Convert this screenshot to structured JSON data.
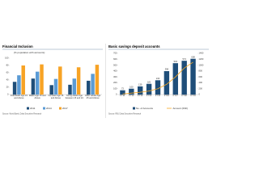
{
  "chart_data": [
    {
      "type": "bar",
      "title": "Financial Inclusion",
      "subtitle": "(% population with accounts)",
      "categories": [
        "Individuals Age 15 and Above",
        "Males Age 15 and Above",
        "Females Age 15 and Above",
        "Young Adults Age between 15 and 24",
        "Older Adults Age 25 and Above"
      ],
      "series": [
        {
          "name": "2011",
          "color": "#1f4e79",
          "values": [
            35,
            44,
            26,
            27,
            38
          ]
        },
        {
          "name": "2014",
          "color": "#5b9bd5",
          "values": [
            53,
            63,
            43,
            44,
            57
          ]
        },
        {
          "name": "2017",
          "color": "#f7a325",
          "values": [
            80,
            83,
            77,
            75,
            82
          ]
        }
      ],
      "ylim": [
        0,
        100
      ],
      "yticks": [
        0,
        20,
        40,
        60,
        80,
        100
      ],
      "source": "Source: World Bank, Dolat Securities Research"
    },
    {
      "type": "bar-line",
      "title": "Basic savings deposit accounts",
      "categories": [
        "FY11",
        "FY12",
        "FY13",
        "FY14",
        "FY15",
        "FY16",
        "FY17",
        "FY18",
        "FY19"
      ],
      "series": [
        {
          "name": "No. of Accounts",
          "color": "#1f4e79",
          "values": [
            73,
            100,
            139,
            182,
            243,
            398,
            533,
            574,
            608
          ]
        },
        {
          "name": "Amount (INR)",
          "color": "#f5a623",
          "axis": "y2",
          "values": [
            20,
            50,
            80,
            120,
            200,
            350,
            600,
            900,
            1100
          ]
        }
      ],
      "ylim": [
        0,
        700
      ],
      "yticks": [
        0,
        100,
        200,
        300,
        400,
        500,
        600,
        700
      ],
      "y2lim": [
        0,
        1400
      ],
      "y2ticks": [
        0,
        200,
        400,
        600,
        800,
        1000,
        1200,
        1400
      ],
      "source": "Source: RBI, Dolat Securities Research"
    }
  ]
}
